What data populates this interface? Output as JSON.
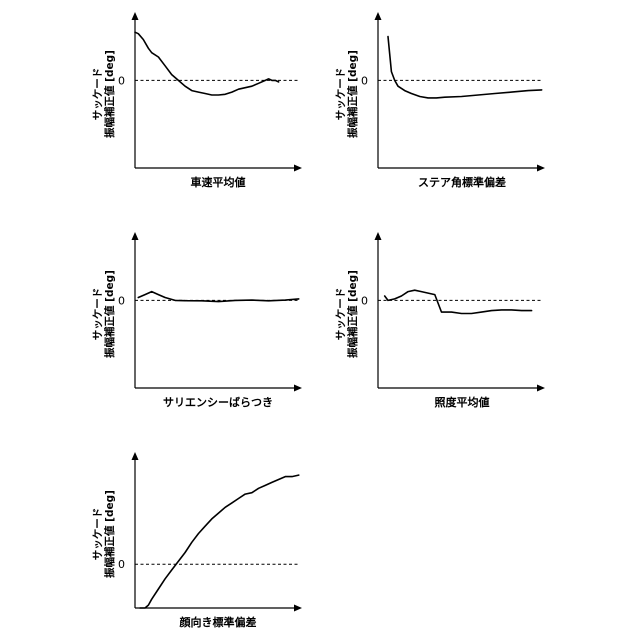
{
  "chart_data": [
    {
      "type": "line",
      "ylabel_line1": "サッケード",
      "ylabel_line2": "振幅補正値 [deg]",
      "ytick": "0",
      "xlabel": "車速平均値",
      "zero_level": 0.6,
      "series": [
        {
          "points": [
            [
              0,
              0.93
            ],
            [
              0.02,
              0.92
            ],
            [
              0.05,
              0.88
            ],
            [
              0.08,
              0.82
            ],
            [
              0.1,
              0.79
            ],
            [
              0.14,
              0.76
            ],
            [
              0.18,
              0.7
            ],
            [
              0.22,
              0.64
            ],
            [
              0.26,
              0.6
            ],
            [
              0.3,
              0.56
            ],
            [
              0.34,
              0.53
            ],
            [
              0.38,
              0.52
            ],
            [
              0.42,
              0.51
            ],
            [
              0.46,
              0.5
            ],
            [
              0.5,
              0.5
            ],
            [
              0.54,
              0.505
            ],
            [
              0.58,
              0.52
            ],
            [
              0.62,
              0.54
            ],
            [
              0.66,
              0.55
            ],
            [
              0.7,
              0.56
            ],
            [
              0.74,
              0.58
            ],
            [
              0.78,
              0.6
            ],
            [
              0.8,
              0.61
            ],
            [
              0.82,
              0.6
            ],
            [
              0.84,
              0.6
            ],
            [
              0.86,
              0.59
            ]
          ]
        }
      ]
    },
    {
      "type": "line",
      "ylabel_line1": "サッケード",
      "ylabel_line2": "振幅補正値 [deg]",
      "ytick": "0",
      "xlabel": "ステア角標準偏差",
      "zero_level": 0.6,
      "series": [
        {
          "points": [
            [
              0.06,
              0.9
            ],
            [
              0.07,
              0.78
            ],
            [
              0.08,
              0.66
            ],
            [
              0.1,
              0.6
            ],
            [
              0.12,
              0.56
            ],
            [
              0.16,
              0.53
            ],
            [
              0.2,
              0.51
            ],
            [
              0.25,
              0.49
            ],
            [
              0.3,
              0.48
            ],
            [
              0.35,
              0.48
            ],
            [
              0.4,
              0.485
            ],
            [
              0.5,
              0.49
            ],
            [
              0.6,
              0.5
            ],
            [
              0.7,
              0.51
            ],
            [
              0.8,
              0.52
            ],
            [
              0.9,
              0.53
            ],
            [
              0.98,
              0.535
            ]
          ]
        }
      ]
    },
    {
      "type": "line",
      "ylabel_line1": "サッケード",
      "ylabel_line2": "振幅補正値 [deg]",
      "ytick": "0",
      "xlabel": "サリエンシーばらつき",
      "zero_level": 0.6,
      "series": [
        {
          "points": [
            [
              0.02,
              0.62
            ],
            [
              0.06,
              0.64
            ],
            [
              0.1,
              0.66
            ],
            [
              0.14,
              0.64
            ],
            [
              0.18,
              0.62
            ],
            [
              0.24,
              0.6
            ],
            [
              0.3,
              0.598
            ],
            [
              0.4,
              0.597
            ],
            [
              0.5,
              0.592
            ],
            [
              0.6,
              0.6
            ],
            [
              0.7,
              0.602
            ],
            [
              0.8,
              0.597
            ],
            [
              0.9,
              0.602
            ],
            [
              0.98,
              0.61
            ]
          ]
        }
      ]
    },
    {
      "type": "line",
      "ylabel_line1": "サッケード",
      "ylabel_line2": "振幅補正値 [deg]",
      "ytick": "0",
      "xlabel": "照度平均値",
      "zero_level": 0.6,
      "series": [
        {
          "points": [
            [
              0.04,
              0.63
            ],
            [
              0.06,
              0.6
            ],
            [
              0.1,
              0.61
            ],
            [
              0.14,
              0.63
            ],
            [
              0.18,
              0.66
            ],
            [
              0.22,
              0.67
            ],
            [
              0.26,
              0.66
            ],
            [
              0.3,
              0.65
            ],
            [
              0.34,
              0.64
            ],
            [
              0.38,
              0.52
            ],
            [
              0.44,
              0.52
            ],
            [
              0.5,
              0.51
            ],
            [
              0.56,
              0.51
            ],
            [
              0.62,
              0.52
            ],
            [
              0.68,
              0.53
            ],
            [
              0.74,
              0.535
            ],
            [
              0.8,
              0.535
            ],
            [
              0.86,
              0.53
            ],
            [
              0.92,
              0.53
            ]
          ]
        }
      ]
    },
    {
      "type": "line",
      "ylabel_line1": "サッケード",
      "ylabel_line2": "振幅補正値 [deg]",
      "ytick": "0",
      "xlabel": "顔向き標準偏差",
      "zero_level": 0.3,
      "series": [
        {
          "points": [
            [
              0.03,
              0.0
            ],
            [
              0.06,
              0.0
            ],
            [
              0.08,
              0.02
            ],
            [
              0.1,
              0.06
            ],
            [
              0.14,
              0.13
            ],
            [
              0.18,
              0.2
            ],
            [
              0.22,
              0.26
            ],
            [
              0.26,
              0.32
            ],
            [
              0.3,
              0.38
            ],
            [
              0.34,
              0.45
            ],
            [
              0.38,
              0.51
            ],
            [
              0.42,
              0.56
            ],
            [
              0.46,
              0.61
            ],
            [
              0.5,
              0.65
            ],
            [
              0.54,
              0.69
            ],
            [
              0.58,
              0.72
            ],
            [
              0.62,
              0.75
            ],
            [
              0.66,
              0.78
            ],
            [
              0.7,
              0.79
            ],
            [
              0.74,
              0.82
            ],
            [
              0.78,
              0.84
            ],
            [
              0.82,
              0.86
            ],
            [
              0.86,
              0.88
            ],
            [
              0.9,
              0.9
            ],
            [
              0.94,
              0.9
            ],
            [
              0.98,
              0.91
            ]
          ]
        }
      ]
    }
  ]
}
